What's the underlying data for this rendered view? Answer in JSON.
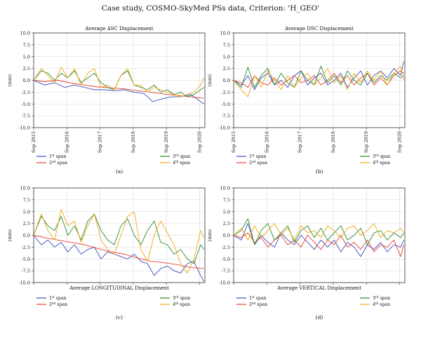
{
  "figure_title": "Case study, COSMO-SkyMed PSs data, Criterion: 'H_GEO'",
  "colors": {
    "span1": "#3b4cc0",
    "span2": "#e8412c",
    "span3": "#2e8b2e",
    "span4": "#f0a818",
    "grid": "#d9d9d9",
    "axis": "#333333"
  },
  "legend": {
    "span1": {
      "num": "1",
      "sup": "st",
      "word": "span"
    },
    "span2": {
      "num": "2",
      "sup": "nd",
      "word": "span"
    },
    "span3": {
      "num": "3",
      "sup": "rd",
      "word": "span"
    },
    "span4": {
      "num": "4",
      "sup": "th",
      "word": "span"
    }
  },
  "chart_data": [
    {
      "type": "line",
      "panel": "(a)",
      "title": "Average ASC Displacement",
      "ylabel": "(mm)",
      "ylim": [
        -10.0,
        10.0
      ],
      "yticks": [
        "10.0",
        "7.5",
        "5.0",
        "2.5",
        "0.0",
        "-2.5",
        "-5.0",
        "-7.5",
        "-10.0"
      ],
      "xlim": [
        2015.67,
        2020.83
      ],
      "xticks": [
        "Sep 2015",
        "Sep 2016",
        "Sep 2017",
        "Sep 2018",
        "Sep 2019",
        "Sep 2020"
      ],
      "grid": true,
      "series": [
        {
          "name": "1st span",
          "x": [
            2015.67,
            2016.0,
            2016.3,
            2016.6,
            2016.9,
            2017.2,
            2017.5,
            2017.8,
            2018.1,
            2018.4,
            2018.7,
            2019.0,
            2019.25,
            2019.5,
            2019.8,
            2020.1,
            2020.4,
            2020.6,
            2020.8
          ],
          "y": [
            0.0,
            -1.0,
            -0.5,
            -1.5,
            -1.0,
            -1.5,
            -2.0,
            -2.0,
            -2.2,
            -2.0,
            -2.5,
            -2.8,
            -4.5,
            -4.0,
            -3.5,
            -3.5,
            -3.0,
            -4.0,
            -5.0
          ]
        },
        {
          "name": "2nd span",
          "x": [
            2015.67,
            2016.0,
            2016.4,
            2016.8,
            2017.2,
            2017.6,
            2018.0,
            2018.4,
            2018.8,
            2019.2,
            2019.6,
            2020.0,
            2020.4,
            2020.8
          ],
          "y": [
            0.0,
            -0.3,
            0.0,
            -0.6,
            -1.0,
            -1.4,
            -1.6,
            -1.8,
            -2.2,
            -2.5,
            -2.9,
            -3.2,
            -3.5,
            -3.8
          ]
        },
        {
          "name": "3rd span",
          "x": [
            2015.67,
            2015.9,
            2016.1,
            2016.3,
            2016.5,
            2016.7,
            2016.9,
            2017.1,
            2017.3,
            2017.5,
            2017.7,
            2017.9,
            2018.1,
            2018.3,
            2018.5,
            2018.7,
            2018.9,
            2019.1,
            2019.3,
            2019.5,
            2019.7,
            2019.9,
            2020.1,
            2020.3,
            2020.5,
            2020.7,
            2020.8
          ],
          "y": [
            0.0,
            2.0,
            1.5,
            0.0,
            1.5,
            0.5,
            2.0,
            -0.5,
            0.5,
            1.5,
            -0.5,
            -1.5,
            -2.0,
            1.0,
            2.0,
            -1.0,
            -1.5,
            -2.0,
            -1.0,
            -2.5,
            -2.0,
            -3.0,
            -2.5,
            -3.5,
            -3.0,
            -2.0,
            -1.5
          ]
        },
        {
          "name": "4th span",
          "x": [
            2015.67,
            2015.9,
            2016.1,
            2016.3,
            2016.5,
            2016.7,
            2016.9,
            2017.1,
            2017.3,
            2017.5,
            2017.7,
            2017.9,
            2018.1,
            2018.3,
            2018.5,
            2018.7,
            2018.9,
            2019.1,
            2019.3,
            2019.5,
            2019.7,
            2019.9,
            2020.1,
            2020.3,
            2020.5,
            2020.7,
            2020.8
          ],
          "y": [
            0.0,
            2.5,
            1.0,
            -0.5,
            2.8,
            0.5,
            2.5,
            -1.0,
            1.5,
            2.5,
            -1.5,
            -1.0,
            -2.0,
            1.0,
            2.5,
            -1.0,
            -1.0,
            -2.5,
            -1.5,
            -2.0,
            -2.5,
            -3.0,
            -3.5,
            -3.0,
            -2.5,
            -1.0,
            0.5
          ]
        }
      ]
    },
    {
      "type": "line",
      "panel": "(b)",
      "title": "Average DSC Displacement",
      "ylabel": "(mm)",
      "ylim": [
        -10.0,
        10.0
      ],
      "yticks": [
        "10.0",
        "7.5",
        "5.0",
        "2.5",
        "0.0",
        "-2.5",
        "-5.0",
        "-7.5",
        "-10.0"
      ],
      "xlim": [
        2015.67,
        2020.83
      ],
      "xticks": [
        "Sep 2015",
        "Sep 2016",
        "Sep 2017",
        "Sep 2018",
        "Sep 2019",
        "Sep 2020"
      ],
      "grid": true,
      "series": [
        {
          "name": "1st span",
          "x": [
            2015.67,
            2015.9,
            2016.1,
            2016.3,
            2016.5,
            2016.7,
            2016.9,
            2017.1,
            2017.3,
            2017.5,
            2017.7,
            2017.9,
            2018.1,
            2018.3,
            2018.5,
            2018.7,
            2018.9,
            2019.1,
            2019.3,
            2019.5,
            2019.7,
            2019.9,
            2020.1,
            2020.3,
            2020.5,
            2020.7,
            2020.8
          ],
          "y": [
            0.0,
            -1.0,
            1.0,
            -2.0,
            0.5,
            1.5,
            -1.0,
            0.0,
            -1.5,
            1.0,
            2.0,
            -1.0,
            0.5,
            1.5,
            -1.0,
            0.0,
            1.5,
            -1.5,
            0.5,
            2.0,
            -1.0,
            1.0,
            2.0,
            0.5,
            2.5,
            1.0,
            4.0
          ]
        },
        {
          "name": "2nd span",
          "x": [
            2015.67,
            2015.9,
            2016.1,
            2016.3,
            2016.5,
            2016.7,
            2016.9,
            2017.1,
            2017.3,
            2017.5,
            2017.7,
            2017.9,
            2018.1,
            2018.3,
            2018.5,
            2018.7,
            2018.9,
            2019.1,
            2019.3,
            2019.5,
            2019.7,
            2019.9,
            2020.1,
            2020.3,
            2020.5,
            2020.7,
            2020.8
          ],
          "y": [
            0.0,
            -0.5,
            -1.5,
            1.0,
            -0.5,
            -1.0,
            0.5,
            -1.0,
            0.0,
            1.0,
            -0.5,
            0.0,
            1.0,
            -1.0,
            0.0,
            1.5,
            -0.5,
            1.0,
            -1.0,
            0.5,
            1.5,
            -1.0,
            0.5,
            -1.0,
            1.0,
            2.0,
            1.5
          ]
        },
        {
          "name": "3rd span",
          "x": [
            2015.67,
            2015.9,
            2016.1,
            2016.3,
            2016.5,
            2016.7,
            2016.9,
            2017.1,
            2017.3,
            2017.5,
            2017.7,
            2017.9,
            2018.1,
            2018.3,
            2018.5,
            2018.7,
            2018.9,
            2019.1,
            2019.3,
            2019.5,
            2019.7,
            2019.9,
            2020.1,
            2020.3,
            2020.5,
            2020.7,
            2020.8
          ],
          "y": [
            0.0,
            -1.5,
            2.8,
            -1.5,
            1.0,
            2.5,
            -1.0,
            1.5,
            -0.5,
            -1.5,
            2.0,
            0.0,
            -1.0,
            3.0,
            -0.5,
            1.0,
            -1.0,
            2.0,
            0.0,
            -1.0,
            1.5,
            -0.5,
            1.0,
            0.0,
            1.5,
            0.5,
            1.0
          ]
        },
        {
          "name": "4th span",
          "x": [
            2015.67,
            2015.9,
            2016.1,
            2016.3,
            2016.5,
            2016.7,
            2016.9,
            2017.1,
            2017.3,
            2017.5,
            2017.7,
            2017.9,
            2018.1,
            2018.3,
            2018.5,
            2018.7,
            2018.9,
            2019.1,
            2019.3,
            2019.5,
            2019.7,
            2019.9,
            2020.1,
            2020.3,
            2020.5,
            2020.7,
            2020.8
          ],
          "y": [
            0.0,
            -2.0,
            -3.5,
            1.0,
            -1.5,
            2.0,
            0.0,
            -2.0,
            1.0,
            -1.5,
            0.5,
            1.5,
            -1.0,
            0.5,
            2.5,
            -0.5,
            1.0,
            -2.0,
            1.5,
            -0.5,
            2.0,
            0.0,
            2.0,
            -1.0,
            1.5,
            3.0,
            0.0
          ]
        }
      ]
    },
    {
      "type": "line",
      "panel": "(c)",
      "title": "Average LONGITUDINAL Displacement",
      "ylabel": "(mm)",
      "ylim": [
        -10.0,
        10.0
      ],
      "yticks": [
        "10.0",
        "7.5",
        "5.0",
        "2.5",
        "0.0",
        "-2.5",
        "-5.0",
        "-7.5",
        "-10.0"
      ],
      "xlim": [
        2015.67,
        2020.83
      ],
      "xticks": [],
      "grid": true,
      "series": [
        {
          "name": "1st span",
          "x": [
            2015.67,
            2015.9,
            2016.1,
            2016.3,
            2016.5,
            2016.7,
            2016.9,
            2017.1,
            2017.3,
            2017.5,
            2017.7,
            2017.9,
            2018.1,
            2018.3,
            2018.5,
            2018.7,
            2018.9,
            2019.1,
            2019.3,
            2019.5,
            2019.7,
            2019.9,
            2020.1,
            2020.3,
            2020.5,
            2020.7,
            2020.8
          ],
          "y": [
            0.0,
            -2.0,
            -1.0,
            -2.5,
            -1.5,
            -3.5,
            -2.0,
            -4.0,
            -3.0,
            -2.5,
            -5.0,
            -3.5,
            -4.0,
            -4.5,
            -5.0,
            -4.0,
            -5.5,
            -6.0,
            -8.5,
            -7.0,
            -6.5,
            -7.5,
            -8.0,
            -6.0,
            -5.5,
            -8.5,
            -9.8
          ]
        },
        {
          "name": "2nd span",
          "x": [
            2015.67,
            2016.0,
            2016.4,
            2016.8,
            2017.2,
            2017.6,
            2018.0,
            2018.4,
            2018.8,
            2019.2,
            2019.6,
            2020.0,
            2020.4,
            2020.8
          ],
          "y": [
            0.0,
            -0.5,
            -1.0,
            -1.5,
            -2.0,
            -2.8,
            -3.5,
            -4.0,
            -4.8,
            -5.5,
            -5.8,
            -6.2,
            -6.8,
            -7.0
          ]
        },
        {
          "name": "3rd span",
          "x": [
            2015.67,
            2015.9,
            2016.1,
            2016.3,
            2016.5,
            2016.7,
            2016.9,
            2017.1,
            2017.3,
            2017.5,
            2017.7,
            2017.9,
            2018.1,
            2018.3,
            2018.5,
            2018.7,
            2018.9,
            2019.1,
            2019.3,
            2019.5,
            2019.7,
            2019.9,
            2020.1,
            2020.3,
            2020.5,
            2020.7,
            2020.8
          ],
          "y": [
            0.0,
            4.0,
            2.0,
            1.0,
            4.0,
            0.0,
            2.0,
            -1.0,
            3.0,
            4.5,
            1.0,
            -1.0,
            -2.0,
            2.0,
            3.5,
            0.0,
            -2.0,
            1.0,
            3.0,
            -1.5,
            -2.0,
            -4.0,
            -3.0,
            -5.0,
            -6.0,
            -2.0,
            -3.0
          ]
        },
        {
          "name": "4th span",
          "x": [
            2015.67,
            2015.9,
            2016.1,
            2016.3,
            2016.5,
            2016.7,
            2016.9,
            2017.1,
            2017.3,
            2017.5,
            2017.7,
            2017.9,
            2018.1,
            2018.3,
            2018.5,
            2018.7,
            2018.9,
            2019.1,
            2019.3,
            2019.5,
            2019.7,
            2019.9,
            2020.1,
            2020.3,
            2020.5,
            2020.7,
            2020.8
          ],
          "y": [
            0.0,
            4.5,
            1.0,
            -1.0,
            5.5,
            2.0,
            3.0,
            -1.5,
            2.0,
            4.5,
            -1.0,
            -3.0,
            -4.0,
            0.0,
            4.0,
            5.0,
            -3.0,
            -5.5,
            0.0,
            3.0,
            0.5,
            -2.0,
            -6.0,
            -8.0,
            -5.0,
            1.0,
            -0.5
          ]
        }
      ]
    },
    {
      "type": "line",
      "panel": "(d)",
      "title": "Average VERTICAL Displacement",
      "ylabel": "(mm)",
      "ylim": [
        -10.0,
        10.0
      ],
      "yticks": [
        "10.0",
        "7.5",
        "5.0",
        "2.5",
        "0.0",
        "-2.5",
        "-5.0",
        "-7.5",
        "-10.0"
      ],
      "xlim": [
        2015.67,
        2020.83
      ],
      "xticks": [],
      "grid": true,
      "series": [
        {
          "name": "1st span",
          "x": [
            2015.67,
            2015.9,
            2016.1,
            2016.3,
            2016.5,
            2016.7,
            2016.9,
            2017.1,
            2017.3,
            2017.5,
            2017.7,
            2017.9,
            2018.1,
            2018.3,
            2018.5,
            2018.7,
            2018.9,
            2019.1,
            2019.3,
            2019.5,
            2019.7,
            2019.9,
            2020.1,
            2020.3,
            2020.5,
            2020.7,
            2020.8
          ],
          "y": [
            0.0,
            -1.0,
            2.5,
            -2.0,
            0.0,
            -1.5,
            -2.5,
            0.5,
            -1.0,
            -2.0,
            0.0,
            -1.5,
            -3.0,
            -1.0,
            -2.5,
            -1.0,
            -3.5,
            -1.5,
            -2.5,
            -4.5,
            -2.0,
            -3.0,
            -1.5,
            -3.5,
            -2.0,
            -2.5,
            -1.0
          ]
        },
        {
          "name": "2nd span",
          "x": [
            2015.67,
            2015.9,
            2016.1,
            2016.3,
            2016.5,
            2016.7,
            2016.9,
            2017.1,
            2017.3,
            2017.5,
            2017.7,
            2017.9,
            2018.1,
            2018.3,
            2018.5,
            2018.7,
            2018.9,
            2019.1,
            2019.3,
            2019.5,
            2019.7,
            2019.9,
            2020.1,
            2020.3,
            2020.5,
            2020.7,
            2020.8
          ],
          "y": [
            0.0,
            -0.5,
            0.5,
            -1.5,
            -0.5,
            -2.5,
            -1.0,
            0.0,
            -2.0,
            -1.0,
            -2.5,
            0.0,
            -1.5,
            -3.0,
            -1.0,
            -2.0,
            0.0,
            -2.5,
            -1.5,
            -3.0,
            -1.0,
            -3.5,
            -2.0,
            -2.5,
            -1.0,
            -4.5,
            -2.0
          ]
        },
        {
          "name": "3rd span",
          "x": [
            2015.67,
            2015.9,
            2016.1,
            2016.3,
            2016.5,
            2016.7,
            2016.9,
            2017.1,
            2017.3,
            2017.5,
            2017.7,
            2017.9,
            2018.1,
            2018.3,
            2018.5,
            2018.7,
            2018.9,
            2019.1,
            2019.3,
            2019.5,
            2019.7,
            2019.9,
            2020.1,
            2020.3,
            2020.5,
            2020.7,
            2020.8
          ],
          "y": [
            0.0,
            1.0,
            3.5,
            -2.0,
            1.0,
            2.5,
            -1.0,
            0.5,
            2.0,
            -1.5,
            1.0,
            2.0,
            -0.5,
            1.5,
            -1.0,
            0.5,
            2.0,
            -1.0,
            0.0,
            1.5,
            -2.0,
            0.5,
            1.0,
            -1.0,
            0.5,
            -0.5,
            0.5
          ]
        },
        {
          "name": "4th span",
          "x": [
            2015.67,
            2015.9,
            2016.1,
            2016.3,
            2016.5,
            2016.7,
            2016.9,
            2017.1,
            2017.3,
            2017.5,
            2017.7,
            2017.9,
            2018.1,
            2018.3,
            2018.5,
            2018.7,
            2018.9,
            2019.1,
            2019.3,
            2019.5,
            2019.7,
            2019.9,
            2020.1,
            2020.3,
            2020.5,
            2020.7,
            2020.8
          ],
          "y": [
            0.0,
            1.5,
            -1.0,
            2.0,
            -0.5,
            1.0,
            2.5,
            0.0,
            1.5,
            -1.0,
            2.0,
            0.5,
            1.0,
            -0.5,
            2.0,
            1.0,
            -0.5,
            1.5,
            2.0,
            0.0,
            1.0,
            2.5,
            -0.5,
            1.0,
            0.5,
            1.5,
            0.5
          ]
        }
      ]
    }
  ]
}
